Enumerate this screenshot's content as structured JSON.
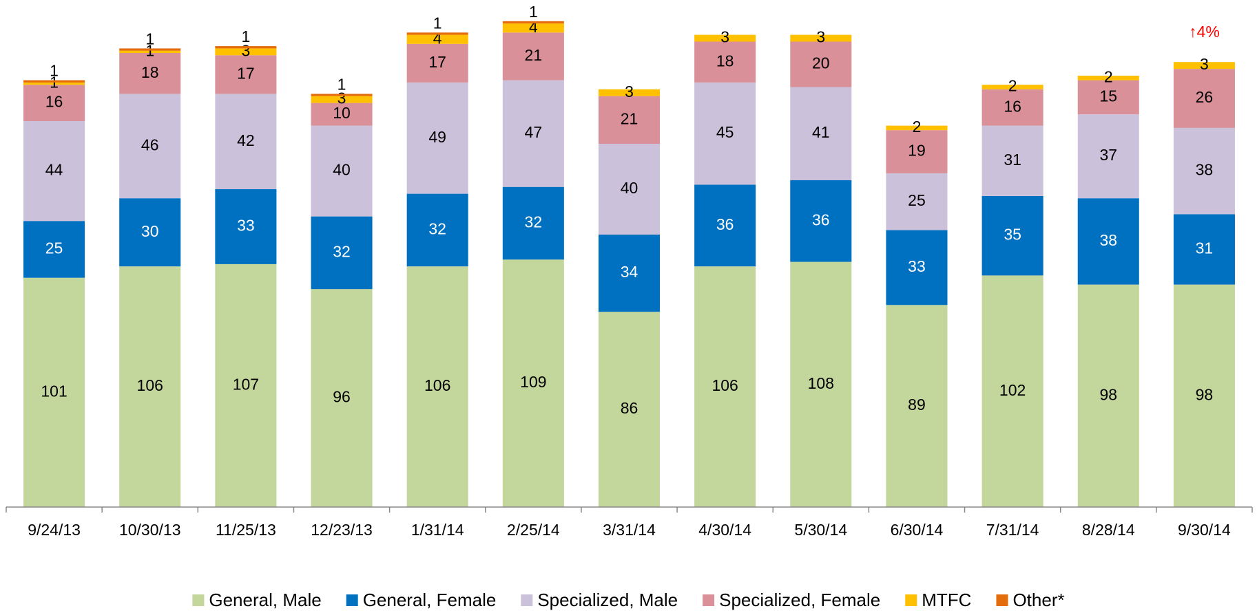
{
  "chart_data": {
    "type": "bar",
    "stacked": true,
    "categories": [
      "9/24/13",
      "10/30/13",
      "11/25/13",
      "12/23/13",
      "1/31/14",
      "2/25/14",
      "3/31/14",
      "4/30/14",
      "5/30/14",
      "6/30/14",
      "7/31/14",
      "8/28/14",
      "9/30/14"
    ],
    "series": [
      {
        "name": "General, Male",
        "color": "#c3d69b",
        "values": [
          101,
          106,
          107,
          96,
          106,
          109,
          86,
          106,
          108,
          89,
          102,
          98,
          98
        ]
      },
      {
        "name": "General, Female",
        "color": "#0070c0",
        "values": [
          25,
          30,
          33,
          32,
          32,
          32,
          34,
          36,
          36,
          33,
          35,
          38,
          31
        ]
      },
      {
        "name": "Specialized, Male",
        "color": "#ccc1da",
        "values": [
          44,
          46,
          42,
          40,
          49,
          47,
          40,
          45,
          41,
          25,
          31,
          37,
          38
        ]
      },
      {
        "name": "Specialized, Female",
        "color": "#d99098",
        "values": [
          16,
          18,
          17,
          10,
          17,
          21,
          21,
          18,
          20,
          19,
          16,
          15,
          26
        ]
      },
      {
        "name": "MTFC",
        "color": "#ffc000",
        "values": [
          1,
          1,
          3,
          3,
          4,
          4,
          3,
          3,
          3,
          2,
          2,
          2,
          3
        ]
      },
      {
        "name": "Other*",
        "color": "#e46c0a",
        "values": [
          1,
          1,
          1,
          1,
          1,
          1,
          null,
          null,
          null,
          null,
          null,
          null,
          null
        ]
      }
    ],
    "annotations": [
      {
        "text": "↑4%",
        "category": 12
      }
    ],
    "ylim": [
      0,
      220
    ],
    "legend": "bottom"
  }
}
